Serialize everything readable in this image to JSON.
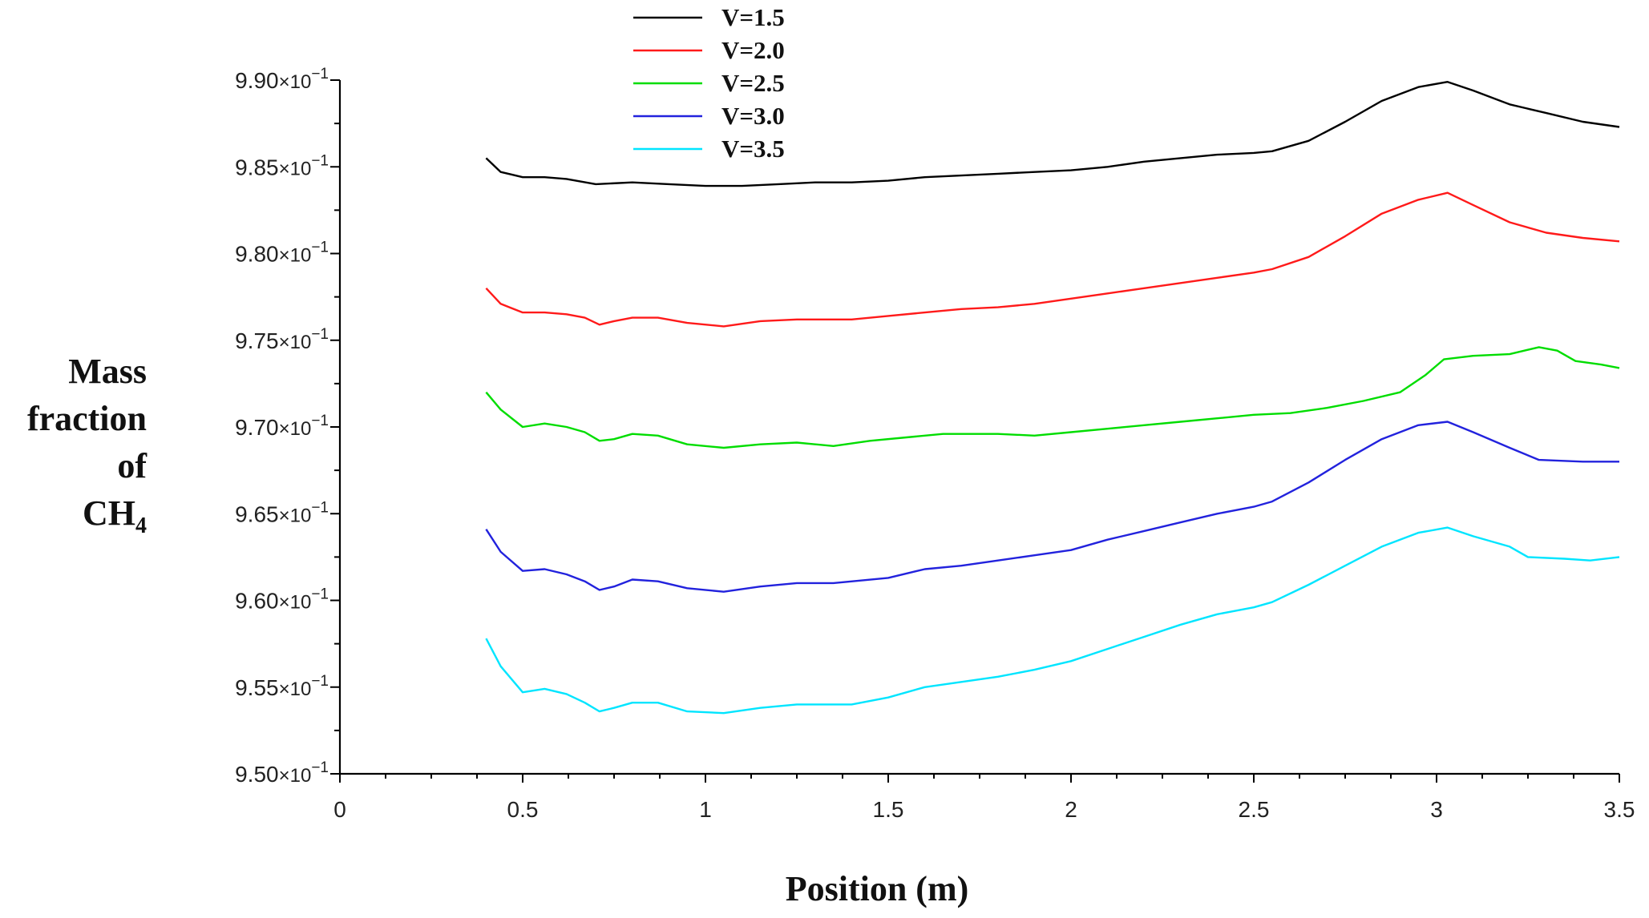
{
  "chart_data": {
    "type": "line",
    "title": "",
    "xlabel": "Position (m)",
    "ylabel_lines": [
      "Mass",
      "fraction",
      "of",
      "CH",
      "4"
    ],
    "xlim": [
      0,
      3.5
    ],
    "ylim": [
      0.95,
      0.99
    ],
    "x_ticks": [
      0,
      0.5,
      1,
      1.5,
      2,
      2.5,
      3,
      3.5
    ],
    "x_tick_labels": [
      "0",
      "0.5",
      "1",
      "1.5",
      "2",
      "2.5",
      "3",
      "3.5"
    ],
    "y_ticks": [
      0.95,
      0.955,
      0.96,
      0.965,
      0.97,
      0.975,
      0.98,
      0.985,
      0.99
    ],
    "y_tick_mantissas": [
      "9.50",
      "9.55",
      "9.60",
      "9.65",
      "9.70",
      "9.75",
      "9.80",
      "9.85",
      "9.90"
    ],
    "y_tick_times": "×10",
    "y_tick_exponent": "−1",
    "grid": false,
    "legend_position": "top-left",
    "series": [
      {
        "name": "V=1.5",
        "color": "#000000",
        "points": [
          [
            0.4,
            0.9855
          ],
          [
            0.44,
            0.9847
          ],
          [
            0.5,
            0.9844
          ],
          [
            0.56,
            0.9844
          ],
          [
            0.62,
            0.9843
          ],
          [
            0.7,
            0.984
          ],
          [
            0.8,
            0.9841
          ],
          [
            0.9,
            0.984
          ],
          [
            1.0,
            0.9839
          ],
          [
            1.1,
            0.9839
          ],
          [
            1.2,
            0.984
          ],
          [
            1.3,
            0.9841
          ],
          [
            1.4,
            0.9841
          ],
          [
            1.5,
            0.9842
          ],
          [
            1.6,
            0.9844
          ],
          [
            1.7,
            0.9845
          ],
          [
            1.8,
            0.9846
          ],
          [
            1.9,
            0.9847
          ],
          [
            2.0,
            0.9848
          ],
          [
            2.1,
            0.985
          ],
          [
            2.2,
            0.9853
          ],
          [
            2.3,
            0.9855
          ],
          [
            2.4,
            0.9857
          ],
          [
            2.5,
            0.9858
          ],
          [
            2.55,
            0.9859
          ],
          [
            2.65,
            0.9865
          ],
          [
            2.75,
            0.9876
          ],
          [
            2.85,
            0.9888
          ],
          [
            2.95,
            0.9896
          ],
          [
            3.03,
            0.9899
          ],
          [
            3.1,
            0.9894
          ],
          [
            3.2,
            0.9886
          ],
          [
            3.3,
            0.9881
          ],
          [
            3.4,
            0.9876
          ],
          [
            3.5,
            0.9873
          ]
        ]
      },
      {
        "name": "V=2.0",
        "color": "#ff1a1a",
        "points": [
          [
            0.4,
            0.978
          ],
          [
            0.44,
            0.9771
          ],
          [
            0.5,
            0.9766
          ],
          [
            0.56,
            0.9766
          ],
          [
            0.62,
            0.9765
          ],
          [
            0.67,
            0.9763
          ],
          [
            0.71,
            0.9759
          ],
          [
            0.75,
            0.9761
          ],
          [
            0.8,
            0.9763
          ],
          [
            0.87,
            0.9763
          ],
          [
            0.95,
            0.976
          ],
          [
            1.05,
            0.9758
          ],
          [
            1.15,
            0.9761
          ],
          [
            1.25,
            0.9762
          ],
          [
            1.4,
            0.9762
          ],
          [
            1.5,
            0.9764
          ],
          [
            1.6,
            0.9766
          ],
          [
            1.7,
            0.9768
          ],
          [
            1.8,
            0.9769
          ],
          [
            1.9,
            0.9771
          ],
          [
            2.0,
            0.9774
          ],
          [
            2.1,
            0.9777
          ],
          [
            2.2,
            0.978
          ],
          [
            2.3,
            0.9783
          ],
          [
            2.4,
            0.9786
          ],
          [
            2.5,
            0.9789
          ],
          [
            2.55,
            0.9791
          ],
          [
            2.65,
            0.9798
          ],
          [
            2.75,
            0.981
          ],
          [
            2.85,
            0.9823
          ],
          [
            2.95,
            0.9831
          ],
          [
            3.03,
            0.9835
          ],
          [
            3.1,
            0.9828
          ],
          [
            3.2,
            0.9818
          ],
          [
            3.3,
            0.9812
          ],
          [
            3.4,
            0.9809
          ],
          [
            3.5,
            0.9807
          ]
        ]
      },
      {
        "name": "V=2.5",
        "color": "#00dd00",
        "points": [
          [
            0.4,
            0.972
          ],
          [
            0.44,
            0.971
          ],
          [
            0.5,
            0.97
          ],
          [
            0.56,
            0.9702
          ],
          [
            0.62,
            0.97
          ],
          [
            0.67,
            0.9697
          ],
          [
            0.71,
            0.9692
          ],
          [
            0.75,
            0.9693
          ],
          [
            0.8,
            0.9696
          ],
          [
            0.87,
            0.9695
          ],
          [
            0.95,
            0.969
          ],
          [
            1.05,
            0.9688
          ],
          [
            1.15,
            0.969
          ],
          [
            1.25,
            0.9691
          ],
          [
            1.35,
            0.9689
          ],
          [
            1.45,
            0.9692
          ],
          [
            1.55,
            0.9694
          ],
          [
            1.65,
            0.9696
          ],
          [
            1.8,
            0.9696
          ],
          [
            1.9,
            0.9695
          ],
          [
            2.0,
            0.9697
          ],
          [
            2.1,
            0.9699
          ],
          [
            2.2,
            0.9701
          ],
          [
            2.3,
            0.9703
          ],
          [
            2.4,
            0.9705
          ],
          [
            2.5,
            0.9707
          ],
          [
            2.6,
            0.9708
          ],
          [
            2.7,
            0.9711
          ],
          [
            2.8,
            0.9715
          ],
          [
            2.9,
            0.972
          ],
          [
            2.97,
            0.973
          ],
          [
            3.02,
            0.9739
          ],
          [
            3.1,
            0.9741
          ],
          [
            3.2,
            0.9742
          ],
          [
            3.28,
            0.9746
          ],
          [
            3.33,
            0.9744
          ],
          [
            3.38,
            0.9738
          ],
          [
            3.45,
            0.9736
          ],
          [
            3.5,
            0.9734
          ]
        ]
      },
      {
        "name": "V=3.0",
        "color": "#2222dd",
        "points": [
          [
            0.4,
            0.9641
          ],
          [
            0.44,
            0.9628
          ],
          [
            0.5,
            0.9617
          ],
          [
            0.56,
            0.9618
          ],
          [
            0.62,
            0.9615
          ],
          [
            0.67,
            0.9611
          ],
          [
            0.71,
            0.9606
          ],
          [
            0.75,
            0.9608
          ],
          [
            0.8,
            0.9612
          ],
          [
            0.87,
            0.9611
          ],
          [
            0.95,
            0.9607
          ],
          [
            1.05,
            0.9605
          ],
          [
            1.15,
            0.9608
          ],
          [
            1.25,
            0.961
          ],
          [
            1.35,
            0.961
          ],
          [
            1.5,
            0.9613
          ],
          [
            1.6,
            0.9618
          ],
          [
            1.7,
            0.962
          ],
          [
            1.8,
            0.9623
          ],
          [
            1.9,
            0.9626
          ],
          [
            2.0,
            0.9629
          ],
          [
            2.1,
            0.9635
          ],
          [
            2.2,
            0.964
          ],
          [
            2.3,
            0.9645
          ],
          [
            2.4,
            0.965
          ],
          [
            2.5,
            0.9654
          ],
          [
            2.55,
            0.9657
          ],
          [
            2.65,
            0.9668
          ],
          [
            2.75,
            0.9681
          ],
          [
            2.85,
            0.9693
          ],
          [
            2.95,
            0.9701
          ],
          [
            3.03,
            0.9703
          ],
          [
            3.1,
            0.9697
          ],
          [
            3.2,
            0.9688
          ],
          [
            3.28,
            0.9681
          ],
          [
            3.4,
            0.968
          ],
          [
            3.5,
            0.968
          ]
        ]
      },
      {
        "name": "V=3.5",
        "color": "#00e5ff",
        "points": [
          [
            0.4,
            0.9578
          ],
          [
            0.44,
            0.9562
          ],
          [
            0.5,
            0.9547
          ],
          [
            0.56,
            0.9549
          ],
          [
            0.62,
            0.9546
          ],
          [
            0.67,
            0.9541
          ],
          [
            0.71,
            0.9536
          ],
          [
            0.75,
            0.9538
          ],
          [
            0.8,
            0.9541
          ],
          [
            0.87,
            0.9541
          ],
          [
            0.95,
            0.9536
          ],
          [
            1.05,
            0.9535
          ],
          [
            1.15,
            0.9538
          ],
          [
            1.25,
            0.954
          ],
          [
            1.4,
            0.954
          ],
          [
            1.5,
            0.9544
          ],
          [
            1.6,
            0.955
          ],
          [
            1.7,
            0.9553
          ],
          [
            1.8,
            0.9556
          ],
          [
            1.9,
            0.956
          ],
          [
            2.0,
            0.9565
          ],
          [
            2.1,
            0.9572
          ],
          [
            2.2,
            0.9579
          ],
          [
            2.3,
            0.9586
          ],
          [
            2.4,
            0.9592
          ],
          [
            2.5,
            0.9596
          ],
          [
            2.55,
            0.9599
          ],
          [
            2.65,
            0.9609
          ],
          [
            2.75,
            0.962
          ],
          [
            2.85,
            0.9631
          ],
          [
            2.95,
            0.9639
          ],
          [
            3.03,
            0.9642
          ],
          [
            3.1,
            0.9637
          ],
          [
            3.2,
            0.9631
          ],
          [
            3.25,
            0.9625
          ],
          [
            3.35,
            0.9624
          ],
          [
            3.42,
            0.9623
          ],
          [
            3.5,
            0.9625
          ]
        ]
      }
    ]
  }
}
